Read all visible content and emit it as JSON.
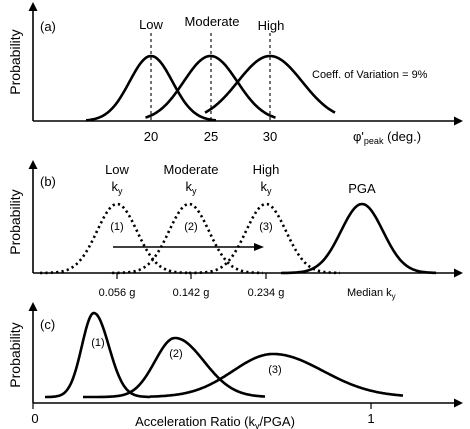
{
  "chart_data": [
    {
      "panel": "(a)",
      "type": "line",
      "ylabel": "Probability",
      "xlabel": "φ'peak (deg.)",
      "xlabel_main": "φ'",
      "xlabel_sub": "peak",
      "xlabel_unit": " (deg.)",
      "ticks": [
        "20",
        "25",
        "30"
      ],
      "annotation": "Coeff. of Variation = 9%",
      "series": [
        {
          "name": "Low",
          "mean": 20,
          "cov": 0.09
        },
        {
          "name": "Moderate",
          "mean": 25,
          "cov": 0.09
        },
        {
          "name": "High",
          "mean": 30,
          "cov": 0.09
        }
      ]
    },
    {
      "panel": "(b)",
      "type": "line",
      "ylabel": "Probability",
      "xlabel": "Median ky",
      "xlabel_main": "Median k",
      "xlabel_sub": "y",
      "series": [
        {
          "name": "(1)",
          "top": "Low",
          "kmain": "k",
          "ksub": "y",
          "median_g": 0.056,
          "tick_label": "0.056 g",
          "style": "dotted"
        },
        {
          "name": "(2)",
          "top": "Moderate",
          "kmain": "k",
          "ksub": "y",
          "median_g": 0.142,
          "tick_label": "0.142 g",
          "style": "dotted"
        },
        {
          "name": "(3)",
          "top": "High",
          "kmain": "k",
          "ksub": "y",
          "median_g": 0.234,
          "tick_label": "0.234 g",
          "style": "dotted"
        },
        {
          "name": "PGA",
          "style": "solid"
        }
      ]
    },
    {
      "panel": "(c)",
      "type": "line",
      "ylabel": "Probability",
      "xlabel": "Acceleration Ratio (ky/PGA)",
      "xlabel_main": "Acceleration Ratio (k",
      "xlabel_sub": "y",
      "xlabel_end": "/PGA)",
      "ticks": [
        "0",
        "1"
      ],
      "xlim": [
        0,
        1.25
      ],
      "series": [
        {
          "name": "(1)",
          "mode": 0.18
        },
        {
          "name": "(2)",
          "mode": 0.42
        },
        {
          "name": "(3)",
          "mode": 0.71
        }
      ]
    }
  ]
}
